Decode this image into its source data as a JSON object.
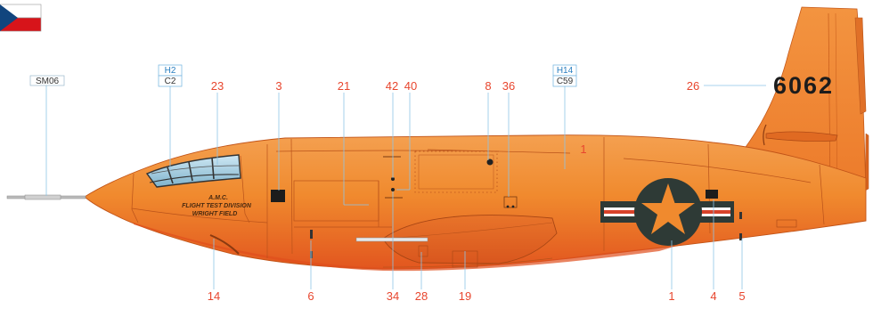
{
  "callouts": {
    "n23": "23",
    "n3": "3",
    "n21": "21",
    "n42": "42",
    "n40": "40",
    "n8": "8",
    "n36": "36",
    "n26": "26",
    "n14": "14",
    "n6": "6",
    "n34": "34",
    "n28": "28",
    "n19": "19",
    "n1_bottom": "1",
    "n4": "4",
    "n5": "5",
    "n1_body": "1"
  },
  "color_codes": {
    "sm06": "SM06",
    "h2": "H2",
    "c2": "C2",
    "h14": "H14",
    "c59": "C59"
  },
  "markings": {
    "tail_number": "6062",
    "nose_line1": "A.M.C.",
    "nose_line2": "FLIGHT TEST DIVISION",
    "nose_line3": "WRIGHT FIELD"
  },
  "colors": {
    "fuselage": "#f08a2e",
    "fuselage_dark": "#e86a22",
    "callout": "#e8462e",
    "roundel_blue": "#2e3a36",
    "roundel_red": "#d8432a",
    "flag_red": "#d7141a",
    "flag_blue": "#11457e"
  },
  "icons": {
    "flag": "czech-flag-icon",
    "insignia": "star-insignia-icon"
  }
}
